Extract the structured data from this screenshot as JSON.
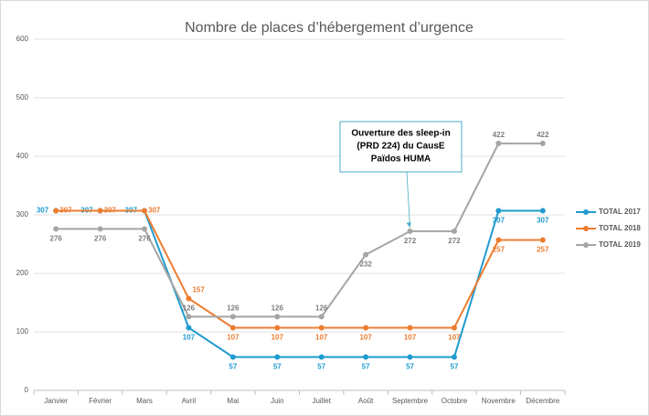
{
  "chart_data": {
    "type": "line",
    "title": "Nombre de places d’hébergement d’urgence",
    "categories": [
      "Janvier",
      "Février",
      "Mars",
      "Avril",
      "Mai",
      "Juin",
      "Juillet",
      "Août",
      "Septembre",
      "Octobre",
      "Novembre",
      "Décembre"
    ],
    "series": [
      {
        "name": "TOTAL 2017",
        "color": "#1f9bcf",
        "values": [
          307,
          307,
          307,
          107,
          57,
          57,
          57,
          57,
          57,
          57,
          307,
          307
        ]
      },
      {
        "name": "TOTAL 2018",
        "color": "#ed7d31",
        "values": [
          307,
          307,
          307,
          157,
          107,
          107,
          107,
          107,
          107,
          107,
          257,
          257
        ]
      },
      {
        "name": "TOTAL 2019",
        "color": "#a5a5a5",
        "values": [
          276,
          276,
          276,
          126,
          126,
          126,
          126,
          232,
          272,
          272,
          422,
          422
        ]
      }
    ],
    "ylim": [
      0,
      600
    ],
    "yticks": [
      0,
      100,
      200,
      300,
      400,
      500,
      600
    ],
    "grid": true,
    "legend": "right",
    "annotation": {
      "lines": [
        "Ouverture des sleep-in",
        "(PRD 224) du CausE",
        "Païdos HUMA"
      ],
      "category": 8
    }
  }
}
